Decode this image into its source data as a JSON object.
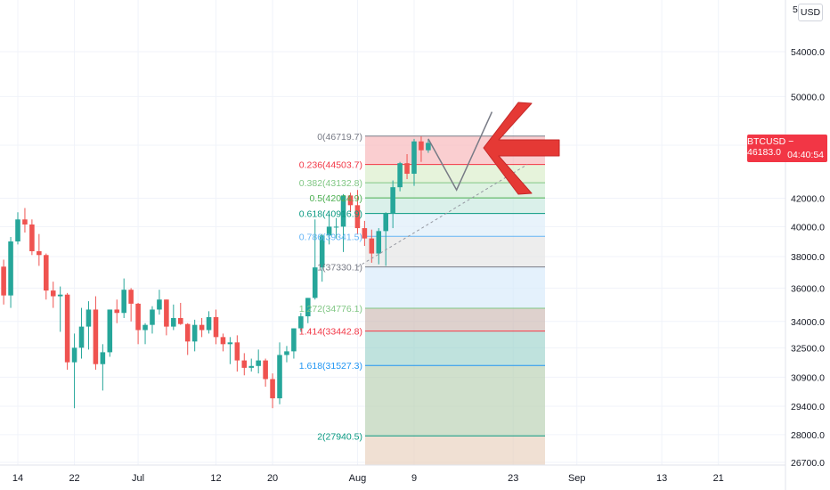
{
  "header": {
    "currency_label": "USD",
    "top_tick": "5"
  },
  "price_label": {
    "symbol": "BTCUSD",
    "price": "46183.0",
    "symbol_price": "BTCUSD − 46183.0",
    "countdown": "04:40:54"
  },
  "colors": {
    "up": "#26a69a",
    "down": "#ef5350",
    "arrow": "#e53935"
  },
  "chart_data": {
    "type": "candlestick",
    "title": "",
    "y_ticks": [
      "54000.0",
      "50000.0",
      "46000.0",
      "42000.0",
      "40000.0",
      "38000.0",
      "36000.0",
      "34000.0",
      "32500.0",
      "30900.0",
      "29400.0",
      "28000.0",
      "26700.0"
    ],
    "y_scale": "log",
    "x_ticks": [
      "14",
      "22",
      "Jul",
      "12",
      "20",
      "Aug",
      "9",
      "23",
      "Sep",
      "13",
      "21"
    ],
    "x_tick_dates": [
      "2021-06-14",
      "2021-06-22",
      "2021-07-01",
      "2021-07-12",
      "2021-07-20",
      "2021-08-01",
      "2021-08-09",
      "2021-08-23",
      "2021-09-01",
      "2021-09-13",
      "2021-09-21"
    ],
    "fib_retracement": {
      "anchor_high": 46719.7,
      "anchor_low": 37330.1,
      "levels": [
        {
          "ratio": "0",
          "price": 46719.7,
          "label": "0(46719.7)",
          "color": "#787b86"
        },
        {
          "ratio": "0.236",
          "price": 44503.7,
          "label": "0.236(44503.7)",
          "color": "#f23645"
        },
        {
          "ratio": "0.382",
          "price": 43132.8,
          "label": "0.382(43132.8)",
          "color": "#81c784"
        },
        {
          "ratio": "0.5",
          "price": 42024.9,
          "label": "0.5(42024.9)",
          "color": "#4caf50"
        },
        {
          "ratio": "0.618",
          "price": 40916.9,
          "label": "0.618(40916.9)",
          "color": "#089981"
        },
        {
          "ratio": "0.786",
          "price": 39341.5,
          "label": "0.786(39341.5)",
          "color": "#64b5f6"
        },
        {
          "ratio": "1",
          "price": 37330.1,
          "label": "1(37330.1)",
          "color": "#787b86"
        },
        {
          "ratio": "1.272",
          "price": 34776.1,
          "label": "1.272(34776.1)",
          "color": "#81c784"
        },
        {
          "ratio": "1.414",
          "price": 33442.8,
          "label": "1.414(33442.8)",
          "color": "#f23645"
        },
        {
          "ratio": "1.618",
          "price": 31527.3,
          "label": "1.618(31527.3)",
          "color": "#2196f3"
        },
        {
          "ratio": "2",
          "price": 27940.5,
          "label": "2(27940.5)",
          "color": "#089981"
        }
      ],
      "zone_colors": [
        "#f8b3b7",
        "#d8edc8",
        "#cdebd3",
        "#c6e8df",
        "#dcecf9",
        "#e3e3e3",
        "#d6e9fb",
        "#cdb8b2",
        "#9dd3cb",
        "#b7cfb0",
        "#e8d0bc"
      ]
    },
    "candles": [
      {
        "date": "2021-06-10",
        "o": 36700,
        "h": 37500,
        "l": 34900,
        "c": 35500
      },
      {
        "date": "2021-06-11",
        "o": 35500,
        "h": 38000,
        "l": 35300,
        "c": 37350
      },
      {
        "date": "2021-06-12",
        "o": 37350,
        "h": 37800,
        "l": 35000,
        "c": 35550
      },
      {
        "date": "2021-06-13",
        "o": 35550,
        "h": 39300,
        "l": 34800,
        "c": 39000
      },
      {
        "date": "2021-06-14",
        "o": 39000,
        "h": 41000,
        "l": 38800,
        "c": 40500
      },
      {
        "date": "2021-06-15",
        "o": 40500,
        "h": 41300,
        "l": 39600,
        "c": 40150
      },
      {
        "date": "2021-06-16",
        "o": 40150,
        "h": 40500,
        "l": 38100,
        "c": 38350
      },
      {
        "date": "2021-06-17",
        "o": 38350,
        "h": 39500,
        "l": 37400,
        "c": 38100
      },
      {
        "date": "2021-06-18",
        "o": 38100,
        "h": 38200,
        "l": 35300,
        "c": 35850
      },
      {
        "date": "2021-06-19",
        "o": 35850,
        "h": 36400,
        "l": 34800,
        "c": 35500
      },
      {
        "date": "2021-06-20",
        "o": 35500,
        "h": 36100,
        "l": 33400,
        "c": 35600
      },
      {
        "date": "2021-06-21",
        "o": 35600,
        "h": 35700,
        "l": 31300,
        "c": 31700
      },
      {
        "date": "2021-06-22",
        "o": 31700,
        "h": 33300,
        "l": 29300,
        "c": 32500
      },
      {
        "date": "2021-06-23",
        "o": 32500,
        "h": 34800,
        "l": 31900,
        "c": 33700
      },
      {
        "date": "2021-06-24",
        "o": 33700,
        "h": 35200,
        "l": 32400,
        "c": 34700
      },
      {
        "date": "2021-06-25",
        "o": 34700,
        "h": 35500,
        "l": 31300,
        "c": 31600
      },
      {
        "date": "2021-06-26",
        "o": 31600,
        "h": 32700,
        "l": 30200,
        "c": 32250
      },
      {
        "date": "2021-06-27",
        "o": 32250,
        "h": 34700,
        "l": 32000,
        "c": 34700
      },
      {
        "date": "2021-06-28",
        "o": 34700,
        "h": 35300,
        "l": 33900,
        "c": 34500
      },
      {
        "date": "2021-06-29",
        "o": 34500,
        "h": 36600,
        "l": 34200,
        "c": 35900
      },
      {
        "date": "2021-06-30",
        "o": 35900,
        "h": 36000,
        "l": 34000,
        "c": 35050
      },
      {
        "date": "2021-07-01",
        "o": 35050,
        "h": 35100,
        "l": 32700,
        "c": 33500
      },
      {
        "date": "2021-07-02",
        "o": 33500,
        "h": 33900,
        "l": 32700,
        "c": 33800
      },
      {
        "date": "2021-07-03",
        "o": 33800,
        "h": 34900,
        "l": 33300,
        "c": 34700
      },
      {
        "date": "2021-07-04",
        "o": 34700,
        "h": 35900,
        "l": 34400,
        "c": 35300
      },
      {
        "date": "2021-07-05",
        "o": 35300,
        "h": 35300,
        "l": 33200,
        "c": 33700
      },
      {
        "date": "2021-07-06",
        "o": 33700,
        "h": 35000,
        "l": 33500,
        "c": 34200
      },
      {
        "date": "2021-07-07",
        "o": 34200,
        "h": 35100,
        "l": 33800,
        "c": 33850
      },
      {
        "date": "2021-07-08",
        "o": 33850,
        "h": 33900,
        "l": 32100,
        "c": 32850
      },
      {
        "date": "2021-07-09",
        "o": 32850,
        "h": 34100,
        "l": 32300,
        "c": 33800
      },
      {
        "date": "2021-07-10",
        "o": 33800,
        "h": 34200,
        "l": 33100,
        "c": 33500
      },
      {
        "date": "2021-07-11",
        "o": 33500,
        "h": 34600,
        "l": 33300,
        "c": 34250
      },
      {
        "date": "2021-07-12",
        "o": 34250,
        "h": 34700,
        "l": 32700,
        "c": 33100
      },
      {
        "date": "2021-07-13",
        "o": 33100,
        "h": 33300,
        "l": 32300,
        "c": 32700
      },
      {
        "date": "2021-07-14",
        "o": 32700,
        "h": 33100,
        "l": 31600,
        "c": 32800
      },
      {
        "date": "2021-07-15",
        "o": 32800,
        "h": 33200,
        "l": 31200,
        "c": 31800
      },
      {
        "date": "2021-07-16",
        "o": 31800,
        "h": 32200,
        "l": 31000,
        "c": 31400
      },
      {
        "date": "2021-07-17",
        "o": 31400,
        "h": 31900,
        "l": 31200,
        "c": 31500
      },
      {
        "date": "2021-07-18",
        "o": 31500,
        "h": 32400,
        "l": 31100,
        "c": 31800
      },
      {
        "date": "2021-07-19",
        "o": 31800,
        "h": 31900,
        "l": 30400,
        "c": 30800
      },
      {
        "date": "2021-07-20",
        "o": 30800,
        "h": 31100,
        "l": 29300,
        "c": 29800
      },
      {
        "date": "2021-07-21",
        "o": 29800,
        "h": 32800,
        "l": 29500,
        "c": 32100
      },
      {
        "date": "2021-07-22",
        "o": 32100,
        "h": 32600,
        "l": 31700,
        "c": 32300
      },
      {
        "date": "2021-07-23",
        "o": 32300,
        "h": 33600,
        "l": 31900,
        "c": 33600
      },
      {
        "date": "2021-07-24",
        "o": 33600,
        "h": 34500,
        "l": 33400,
        "c": 34300
      },
      {
        "date": "2021-07-25",
        "o": 34300,
        "h": 35400,
        "l": 33900,
        "c": 35400
      },
      {
        "date": "2021-07-26",
        "o": 35400,
        "h": 40500,
        "l": 35300,
        "c": 37300
      },
      {
        "date": "2021-07-27",
        "o": 37300,
        "h": 39500,
        "l": 36400,
        "c": 39400
      },
      {
        "date": "2021-07-28",
        "o": 39400,
        "h": 40900,
        "l": 38800,
        "c": 40000
      },
      {
        "date": "2021-07-29",
        "o": 40000,
        "h": 40600,
        "l": 39200,
        "c": 40000
      },
      {
        "date": "2021-07-30",
        "o": 40000,
        "h": 42300,
        "l": 38300,
        "c": 42200
      },
      {
        "date": "2021-07-31",
        "o": 42200,
        "h": 42400,
        "l": 41000,
        "c": 41500
      },
      {
        "date": "2021-08-01",
        "o": 41500,
        "h": 42600,
        "l": 39500,
        "c": 39900
      },
      {
        "date": "2021-08-02",
        "o": 39900,
        "h": 40400,
        "l": 38700,
        "c": 39200
      },
      {
        "date": "2021-08-03",
        "o": 39200,
        "h": 39800,
        "l": 37600,
        "c": 38200
      },
      {
        "date": "2021-08-04",
        "o": 38200,
        "h": 39900,
        "l": 37500,
        "c": 39700
      },
      {
        "date": "2021-08-05",
        "o": 39700,
        "h": 41000,
        "l": 37400,
        "c": 40900
      },
      {
        "date": "2021-08-06",
        "o": 40900,
        "h": 43300,
        "l": 39900,
        "c": 42800
      },
      {
        "date": "2021-08-07",
        "o": 42800,
        "h": 44700,
        "l": 42500,
        "c": 44600
      },
      {
        "date": "2021-08-08",
        "o": 44600,
        "h": 45300,
        "l": 43400,
        "c": 43800
      },
      {
        "date": "2021-08-09",
        "o": 43800,
        "h": 46500,
        "l": 42900,
        "c": 46300
      },
      {
        "date": "2021-08-10",
        "o": 46300,
        "h": 46700,
        "l": 44700,
        "c": 45600
      },
      {
        "date": "2021-08-11",
        "o": 45600,
        "h": 46500,
        "l": 45400,
        "c": 46183
      }
    ],
    "projection_path": [
      {
        "date": "2021-08-11",
        "price": 46500
      },
      {
        "date": "2021-08-15",
        "price": 42600
      },
      {
        "date": "2021-08-20",
        "price": 48700
      }
    ],
    "dashed_trend": [
      {
        "date": "2021-08-01",
        "price": 37330.1
      },
      {
        "date": "2021-08-25",
        "price": 44503.7
      }
    ]
  }
}
